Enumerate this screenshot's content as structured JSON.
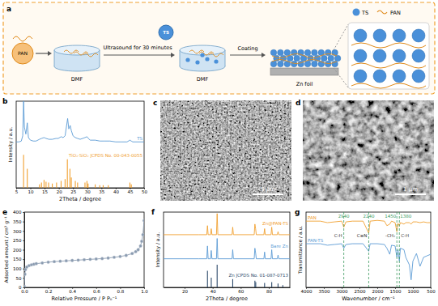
{
  "schematic": {
    "panel": "a",
    "pan": "PAN",
    "solvent": "DMF",
    "step1": "Ultrasound for 30 minutes",
    "filler": "TS",
    "step2": "Coating",
    "substrate": "Zn foil",
    "legend": [
      "TS",
      "PAN"
    ]
  },
  "images": [
    {
      "panel": "c",
      "scale_bar": "5 μm"
    },
    {
      "panel": "d",
      "scale_bar": "1 μm"
    }
  ],
  "chart_data": [
    {
      "type": "line",
      "title": "b",
      "xlabel": "2Theta / degree",
      "ylabel": "Intensity / a.u.",
      "xlim": [
        5,
        50
      ],
      "xticks": [
        5,
        10,
        15,
        20,
        25,
        30,
        35,
        40,
        45,
        50
      ],
      "ylim": [
        0,
        100
      ],
      "tick_labels": "x",
      "legend": "right",
      "series": [
        {
          "name": "TS",
          "type": "line",
          "color": "#5b9bd5",
          "x": [
            5,
            6,
            6.8,
            7.3,
            7.6,
            7.9,
            8.4,
            8.9,
            9.3,
            10,
            11,
            12,
            13.2,
            13.9,
            14.8,
            15.5,
            16.5,
            17.7,
            19,
            19.8,
            20.8,
            21.5,
            22.2,
            23.1,
            23.5,
            24,
            24.4,
            25,
            25.8,
            26.6,
            27.5,
            29.2,
            29.9,
            30.4,
            31,
            32.8,
            34.4,
            36,
            38,
            40,
            42,
            44,
            45,
            45.5,
            46,
            48,
            50
          ],
          "values": [
            53,
            53,
            54,
            60,
            100,
            70,
            62,
            75,
            58,
            55,
            54,
            54,
            56,
            57,
            58,
            57,
            56,
            56,
            57,
            57,
            59,
            58,
            60,
            80,
            68,
            72,
            66,
            60,
            58,
            57,
            56,
            58,
            59,
            57,
            55,
            55,
            54,
            54,
            54,
            53,
            53,
            53,
            55,
            54,
            53,
            53,
            53
          ]
        },
        {
          "name": "TiO₂·SiO₂ JCPDS No. 00-043-0055",
          "type": "stem",
          "color": "#f0a030",
          "x": [
            7.6,
            8.9,
            13.2,
            13.9,
            14.8,
            15.5,
            16.4,
            17.7,
            19.2,
            20.8,
            22.2,
            23.0,
            23.9,
            24.4,
            25.8,
            26.6,
            29.2,
            29.9,
            30.3,
            32.8,
            34.4,
            35.6,
            37.4,
            45.0,
            45.5
          ],
          "values": [
            38,
            22,
            4,
            6,
            9,
            7,
            6,
            5,
            6,
            8,
            10,
            33,
            22,
            12,
            8,
            6,
            6,
            8,
            5,
            4,
            3,
            3,
            3,
            6,
            4
          ]
        }
      ]
    },
    {
      "type": "line",
      "title": "e",
      "xlabel": "Relative Pressure / P P₀⁻¹",
      "ylabel": "Adsorbed amount / cm³ g⁻¹",
      "xlim": [
        0,
        1
      ],
      "xticks": [
        {
          "value": 0,
          "label": "0.0"
        },
        0.2,
        0.4,
        0.6,
        0.8,
        {
          "value": 1,
          "label": "1.0"
        }
      ],
      "ylim": [
        0,
        400
      ],
      "yticks": [
        0,
        50,
        100,
        150,
        200,
        250,
        300,
        350,
        400
      ],
      "x": [
        0,
        0.005,
        0.01,
        0.02,
        0.04,
        0.06,
        0.08,
        0.1,
        0.15,
        0.2,
        0.25,
        0.3,
        0.35,
        0.4,
        0.45,
        0.5,
        0.55,
        0.6,
        0.65,
        0.7,
        0.75,
        0.8,
        0.85,
        0.9,
        0.93,
        0.95,
        0.97,
        0.98,
        0.99,
        1
      ],
      "series": [
        {
          "color": "#8a9bb0",
          "marker": "circle",
          "values": [
            5,
            70,
            95,
            108,
            116,
            120,
            123,
            126,
            130,
            134,
            137,
            139,
            141,
            143,
            145,
            147,
            149,
            151,
            153,
            156,
            160,
            164,
            170,
            180,
            190,
            200,
            220,
            245,
            280,
            355
          ]
        }
      ]
    },
    {
      "type": "line",
      "title": "f",
      "xlabel": "2Theta / degree",
      "ylabel": "Intensity / a.u.",
      "xlim": [
        5,
        95
      ],
      "xticks": [
        20,
        40,
        60,
        80
      ],
      "ylim": [
        0,
        100
      ],
      "tick_labels": "x",
      "legend": "right",
      "series": [
        {
          "name": "Zn@PAN-TS",
          "type": "line",
          "color": "#f0a030",
          "x": [
            5,
            30,
            35.8,
            36.3,
            36.8,
            38.5,
            39,
            39.5,
            42.7,
            43.2,
            43.7,
            53.8,
            54.3,
            54.8,
            69.6,
            70.1,
            70.6,
            71.1,
            76.5,
            77,
            77.5,
            81.6,
            82.1,
            82.6,
            86.1,
            86.6,
            87.1,
            95
          ],
          "values": [
            70,
            70,
            70,
            82,
            70,
            70,
            78,
            70,
            70,
            98,
            70,
            70,
            80,
            70,
            70,
            84,
            78,
            70,
            70,
            78,
            70,
            70,
            80,
            70,
            70,
            74,
            70,
            70
          ]
        },
        {
          "name": "Bare Zn",
          "type": "line",
          "color": "#5b9bd5",
          "x": [
            5,
            30,
            35.8,
            36.3,
            36.8,
            38.5,
            39,
            39.5,
            42.7,
            43.2,
            43.7,
            53.8,
            54.3,
            54.8,
            69.6,
            70.1,
            70.6,
            71.1,
            76.5,
            77,
            77.5,
            81.6,
            82.1,
            82.6,
            86.1,
            86.6,
            87.1,
            95
          ],
          "values": [
            38,
            38,
            38,
            55,
            38,
            38,
            49,
            38,
            38,
            65,
            38,
            38,
            50,
            38,
            38,
            52,
            46,
            38,
            38,
            47,
            38,
            38,
            50,
            38,
            38,
            43,
            38,
            38
          ]
        },
        {
          "name": "Zn JCPDS No. 01-087-0713",
          "type": "stem",
          "color": "#2d4a6b",
          "x": [
            36.3,
            39.0,
            43.2,
            54.3,
            70.1,
            70.7,
            77.0,
            82.1,
            86.6,
            90.0
          ],
          "values": [
            22,
            13,
            30,
            11,
            9,
            7,
            6,
            7,
            5,
            3
          ]
        }
      ]
    },
    {
      "type": "line",
      "title": "g",
      "xlabel": "Wavenumber / cm⁻¹",
      "ylabel": "Transmittance / a.u.",
      "xlim": [
        4000,
        500
      ],
      "xticks": [
        4000,
        3500,
        3000,
        2500,
        2000,
        1500,
        1000,
        500
      ],
      "ylim": [
        0,
        100
      ],
      "tick_labels": "x",
      "legend": "left",
      "annotations": [
        {
          "x": 2940,
          "text": "C-H"
        },
        {
          "x": 2240,
          "text": "C≡N"
        },
        {
          "x": 1450,
          "text": "-CH₂"
        },
        {
          "x": 1380,
          "text": "C-H"
        }
      ],
      "series": [
        {
          "name": "PAN",
          "type": "line",
          "color": "#f0a030",
          "x": [
            4000,
            3600,
            3400,
            3200,
            3000,
            2940,
            2880,
            2700,
            2400,
            2240,
            2200,
            2000,
            1800,
            1730,
            1650,
            1600,
            1500,
            1450,
            1420,
            1380,
            1350,
            1250,
            1200,
            1100,
            1050,
            1000,
            900,
            800,
            700,
            600,
            500
          ],
          "values": [
            88,
            88,
            86,
            87,
            88,
            80,
            87,
            88,
            88,
            72,
            88,
            89,
            88,
            82,
            84,
            88,
            86,
            74,
            85,
            82,
            86,
            84,
            86,
            86,
            84,
            87,
            87,
            86,
            87,
            86,
            86
          ]
        },
        {
          "name": "PAN-TS",
          "type": "line",
          "color": "#5b9bd5",
          "x": [
            4000,
            3600,
            3400,
            3200,
            3000,
            2940,
            2880,
            2700,
            2400,
            2240,
            2200,
            2000,
            1800,
            1730,
            1650,
            1600,
            1500,
            1450,
            1420,
            1380,
            1350,
            1250,
            1200,
            1100,
            1050,
            1000,
            900,
            800,
            700,
            600,
            500
          ],
          "values": [
            58,
            58,
            56,
            57,
            58,
            52,
            57,
            58,
            58,
            48,
            58,
            58,
            57,
            52,
            44,
            56,
            55,
            40,
            50,
            35,
            52,
            50,
            40,
            30,
            10,
            35,
            45,
            28,
            40,
            42,
            44
          ]
        }
      ]
    }
  ]
}
